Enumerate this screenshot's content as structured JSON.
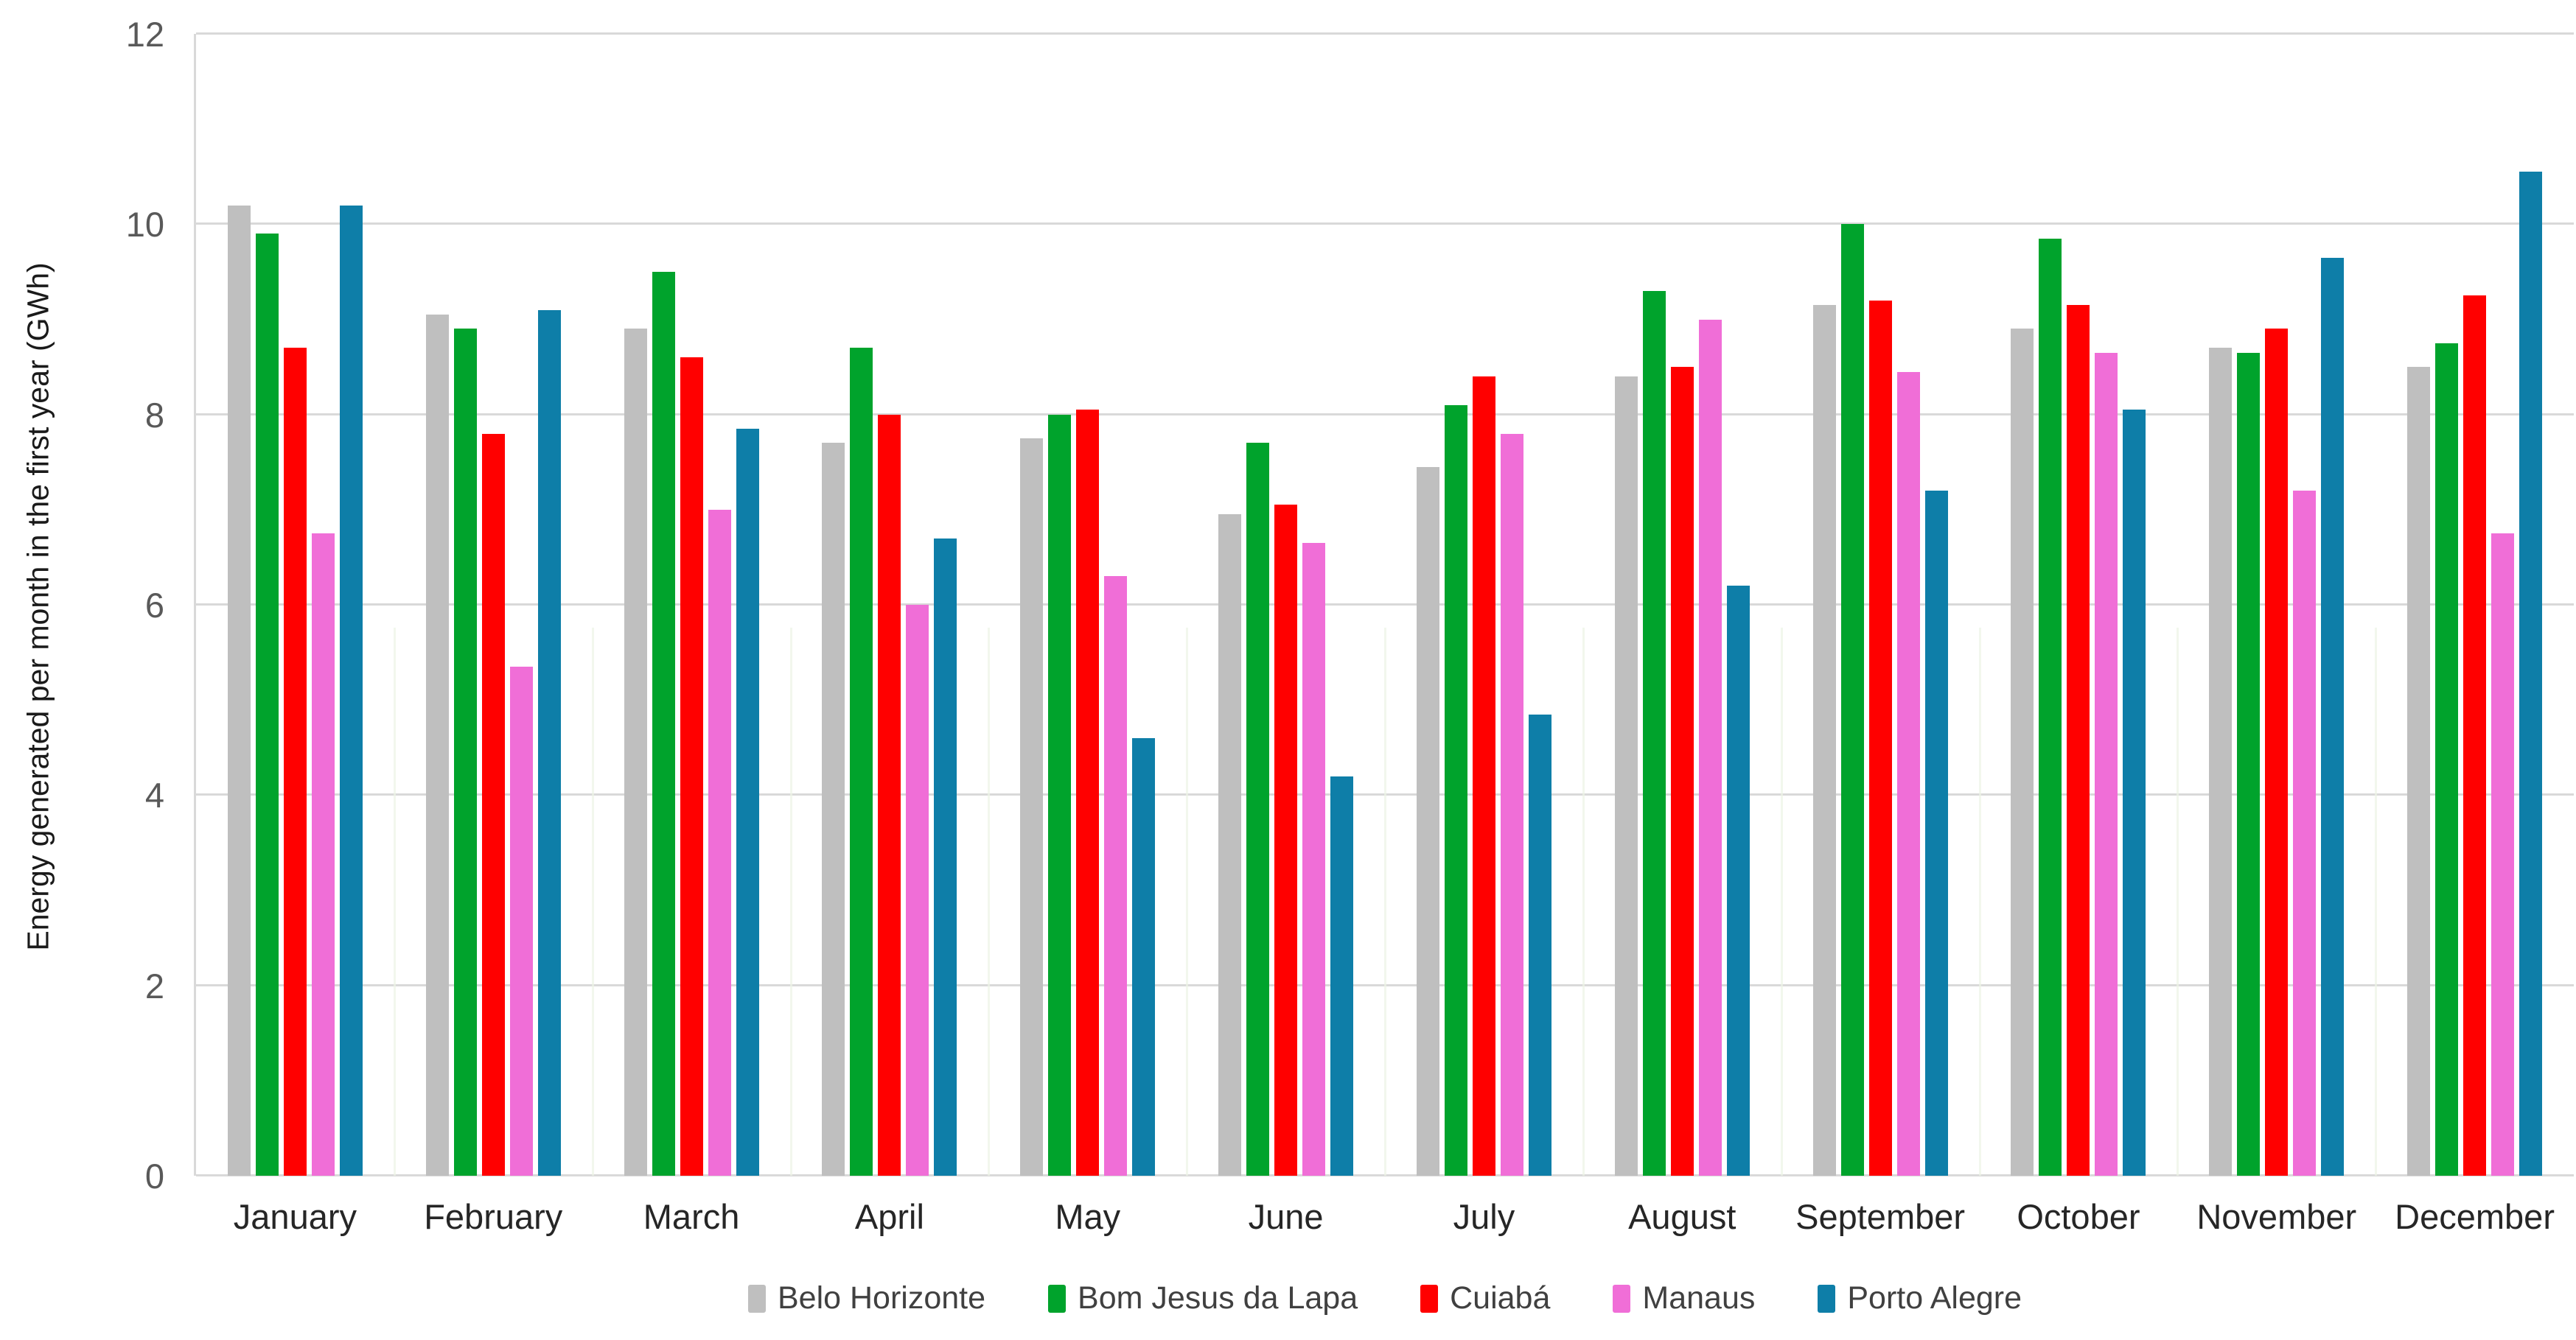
{
  "chart_data": {
    "type": "bar",
    "title": "",
    "ylabel": "Energy generated per month in the first year (GWh)",
    "xlabel": "",
    "ylim": [
      0,
      12
    ],
    "y_ticks": [
      0,
      2,
      4,
      6,
      8,
      10,
      12
    ],
    "grid": "horizontal",
    "legend_position": "bottom",
    "axis_color": "#D9D9D9",
    "tick_label_color": "#595959",
    "categories": [
      "January",
      "February",
      "March",
      "April",
      "May",
      "June",
      "July",
      "August",
      "September",
      "October",
      "November",
      "December"
    ],
    "series": [
      {
        "name": "Belo Horizonte",
        "color": "#BFBFBF",
        "values": [
          10.2,
          9.05,
          8.9,
          7.7,
          7.75,
          6.95,
          7.45,
          8.4,
          9.15,
          8.9,
          8.7,
          8.5
        ]
      },
      {
        "name": "Bom Jesus da Lapa",
        "color": "#00A32C",
        "values": [
          9.9,
          8.9,
          9.5,
          8.7,
          8.0,
          7.7,
          8.1,
          9.3,
          10.0,
          9.85,
          8.65,
          8.75
        ]
      },
      {
        "name": "Cuiabá",
        "color": "#FF0000",
        "values": [
          8.7,
          7.8,
          8.6,
          8.0,
          8.05,
          7.05,
          8.4,
          8.5,
          9.2,
          9.15,
          8.9,
          9.25
        ]
      },
      {
        "name": "Manaus",
        "color": "#F06ED7",
        "values": [
          6.75,
          5.35,
          7.0,
          6.0,
          6.3,
          6.65,
          7.8,
          9.0,
          8.45,
          8.65,
          7.2,
          6.75
        ]
      },
      {
        "name": "Porto Alegre",
        "color": "#0E7EA8",
        "values": [
          10.2,
          9.1,
          7.85,
          6.7,
          4.6,
          4.2,
          4.85,
          6.2,
          7.2,
          8.05,
          9.65,
          10.55
        ]
      }
    ]
  }
}
